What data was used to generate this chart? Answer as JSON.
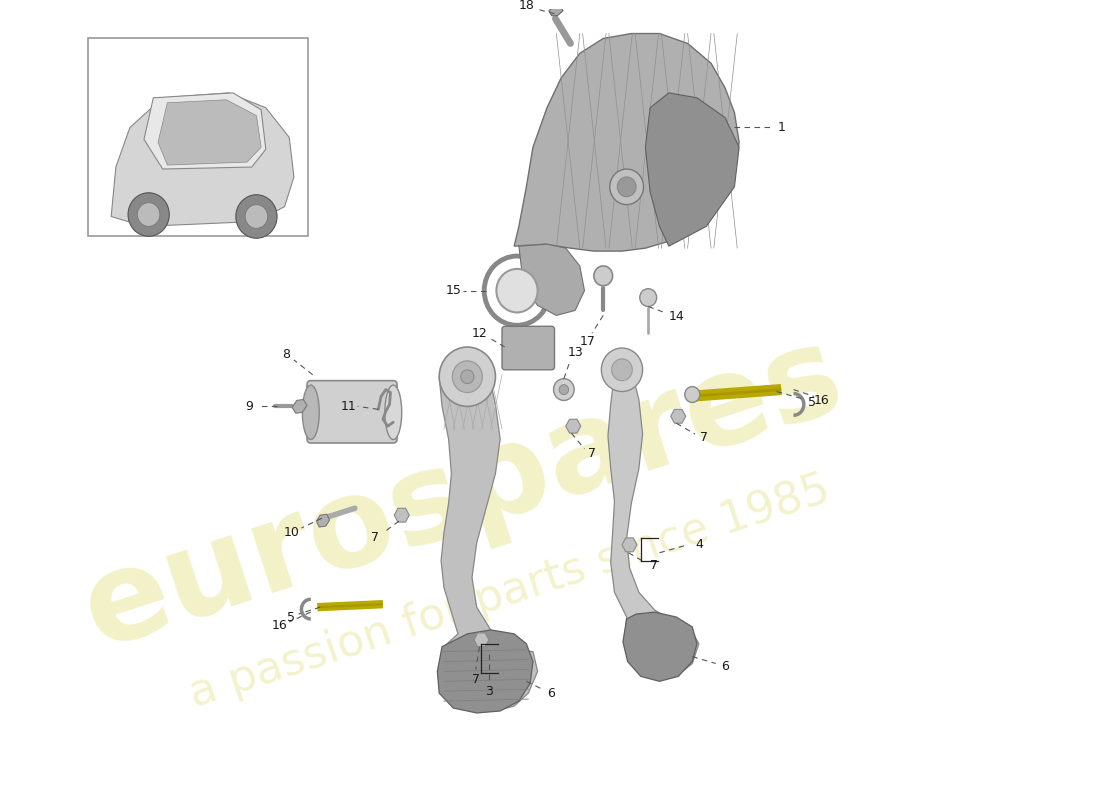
{
  "bg": "#ffffff",
  "wm1": "eurospares",
  "wm2": "a passion for parts since 1985",
  "wm1_color": "#c8c000",
  "wm2_color": "#c8c000",
  "wm1_alpha": 0.22,
  "wm2_alpha": 0.2,
  "text_color": "#1a1a1a",
  "line_color": "#555555",
  "gray_light": "#c8c8c8",
  "gray_mid": "#aaaaaa",
  "gray_dark": "#888888",
  "gold": "#b8a800",
  "fig_w": 11.0,
  "fig_h": 8.0
}
